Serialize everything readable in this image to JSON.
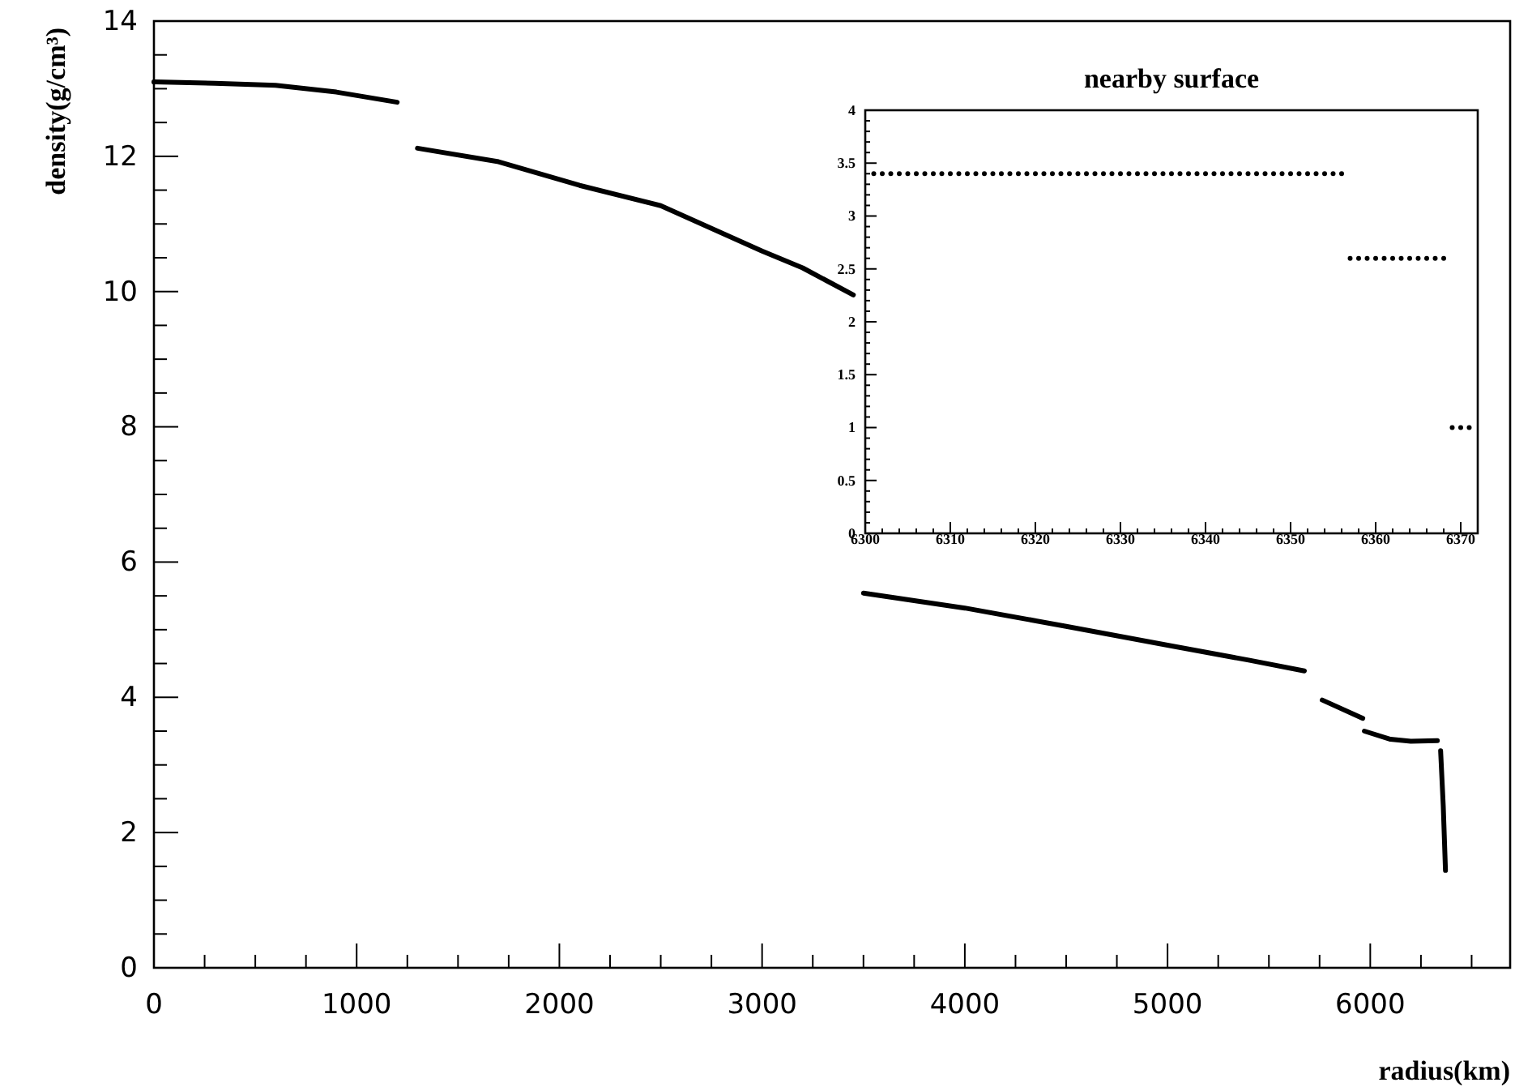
{
  "chart_data": [
    {
      "type": "line",
      "xlabel": "radius(km)",
      "ylabel": "density(g/cm³)",
      "xlim": [
        0,
        6690
      ],
      "ylim": [
        0,
        14
      ],
      "xticks": [
        0,
        {
          "value": 250,
          "label": null
        },
        {
          "value": 500,
          "label": null
        },
        {
          "value": 750,
          "label": null
        },
        1000,
        {
          "value": 1250,
          "label": null
        },
        {
          "value": 1500,
          "label": null
        },
        {
          "value": 1750,
          "label": null
        },
        2000,
        {
          "value": 2250,
          "label": null
        },
        {
          "value": 2500,
          "label": null
        },
        {
          "value": 2750,
          "label": null
        },
        3000,
        {
          "value": 3250,
          "label": null
        },
        {
          "value": 3500,
          "label": null
        },
        {
          "value": 3750,
          "label": null
        },
        4000,
        {
          "value": 4250,
          "label": null
        },
        {
          "value": 4500,
          "label": null
        },
        {
          "value": 4750,
          "label": null
        },
        5000,
        {
          "value": 5250,
          "label": null
        },
        {
          "value": 5500,
          "label": null
        },
        {
          "value": 5750,
          "label": null
        },
        6000,
        {
          "value": 6250,
          "label": null
        },
        {
          "value": 6500,
          "label": null
        }
      ],
      "yticks": [
        0,
        {
          "value": 0.5,
          "label": null
        },
        {
          "value": 1,
          "label": null
        },
        {
          "value": 1.5,
          "label": null
        },
        2,
        {
          "value": 2.5,
          "label": null
        },
        {
          "value": 3,
          "label": null
        },
        {
          "value": 3.5,
          "label": null
        },
        4,
        {
          "value": 4.5,
          "label": null
        },
        {
          "value": 5,
          "label": null
        },
        {
          "value": 5.5,
          "label": null
        },
        6,
        {
          "value": 6.5,
          "label": null
        },
        {
          "value": 7,
          "label": null
        },
        {
          "value": 7.5,
          "label": null
        },
        8,
        {
          "value": 8.5,
          "label": null
        },
        {
          "value": 9,
          "label": null
        },
        {
          "value": 9.5,
          "label": null
        },
        10,
        {
          "value": 10.5,
          "label": null
        },
        {
          "value": 11,
          "label": null
        },
        {
          "value": 11.5,
          "label": null
        },
        12,
        {
          "value": 12.5,
          "label": null
        },
        {
          "value": 13,
          "label": null
        },
        {
          "value": 13.5,
          "label": null
        },
        14
      ],
      "grid": false,
      "marker": "none",
      "line_style": "solid",
      "series": [
        {
          "color": "#000000",
          "x": [
            0,
            300,
            600,
            900,
            1200,
            1250,
            1300,
            1700,
            2100,
            2500,
            3000,
            3200,
            3450,
            3475,
            3500,
            4000,
            4500,
            5000,
            5400,
            5675,
            5720,
            5763,
            5963,
            5967,
            5971,
            6100,
            6200,
            6331,
            6340,
            6347,
            6360,
            6371
          ],
          "values": [
            13.1,
            13.08,
            13.05,
            12.95,
            12.8,
            null,
            12.12,
            11.92,
            11.57,
            11.27,
            10.6,
            10.35,
            9.95,
            null,
            5.54,
            5.32,
            5.05,
            4.77,
            4.55,
            4.39,
            null,
            3.96,
            3.69,
            null,
            3.5,
            3.38,
            3.35,
            3.36,
            null,
            3.21,
            2.4,
            1.44
          ]
        }
      ]
    },
    {
      "type": "scatter",
      "title": "nearby surface",
      "xlim": [
        6300,
        6372
      ],
      "ylim": [
        0,
        4
      ],
      "xticks": [
        6300,
        {
          "value": 6302,
          "label": null
        },
        {
          "value": 6304,
          "label": null
        },
        {
          "value": 6306,
          "label": null
        },
        {
          "value": 6308,
          "label": null
        },
        6310,
        {
          "value": 6312,
          "label": null
        },
        {
          "value": 6314,
          "label": null
        },
        {
          "value": 6316,
          "label": null
        },
        {
          "value": 6318,
          "label": null
        },
        6320,
        {
          "value": 6322,
          "label": null
        },
        {
          "value": 6324,
          "label": null
        },
        {
          "value": 6326,
          "label": null
        },
        {
          "value": 6328,
          "label": null
        },
        6330,
        {
          "value": 6332,
          "label": null
        },
        {
          "value": 6334,
          "label": null
        },
        {
          "value": 6336,
          "label": null
        },
        {
          "value": 6338,
          "label": null
        },
        6340,
        {
          "value": 6342,
          "label": null
        },
        {
          "value": 6344,
          "label": null
        },
        {
          "value": 6346,
          "label": null
        },
        {
          "value": 6348,
          "label": null
        },
        6350,
        {
          "value": 6352,
          "label": null
        },
        {
          "value": 6354,
          "label": null
        },
        {
          "value": 6356,
          "label": null
        },
        {
          "value": 6358,
          "label": null
        },
        6360,
        {
          "value": 6362,
          "label": null
        },
        {
          "value": 6364,
          "label": null
        },
        {
          "value": 6366,
          "label": null
        },
        {
          "value": 6368,
          "label": null
        },
        6370
      ],
      "yticks": [
        0,
        {
          "value": 0.1,
          "label": null
        },
        {
          "value": 0.2,
          "label": null
        },
        {
          "value": 0.3,
          "label": null
        },
        {
          "value": 0.4,
          "label": null
        },
        0.5,
        {
          "value": 0.6,
          "label": null
        },
        {
          "value": 0.7,
          "label": null
        },
        {
          "value": 0.8,
          "label": null
        },
        {
          "value": 0.9,
          "label": null
        },
        1,
        {
          "value": 1.1,
          "label": null
        },
        {
          "value": 1.2,
          "label": null
        },
        {
          "value": 1.3,
          "label": null
        },
        {
          "value": 1.4,
          "label": null
        },
        1.5,
        {
          "value": 1.6,
          "label": null
        },
        {
          "value": 1.7,
          "label": null
        },
        {
          "value": 1.8,
          "label": null
        },
        {
          "value": 1.9,
          "label": null
        },
        2,
        {
          "value": 2.1,
          "label": null
        },
        {
          "value": 2.2,
          "label": null
        },
        {
          "value": 2.3,
          "label": null
        },
        {
          "value": 2.4,
          "label": null
        },
        2.5,
        {
          "value": 2.6,
          "label": null
        },
        {
          "value": 2.7,
          "label": null
        },
        {
          "value": 2.8,
          "label": null
        },
        {
          "value": 2.9,
          "label": null
        },
        3,
        {
          "value": 3.1,
          "label": null
        },
        {
          "value": 3.2,
          "label": null
        },
        {
          "value": 3.3,
          "label": null
        },
        {
          "value": 3.4,
          "label": null
        },
        3.5,
        {
          "value": 3.6,
          "label": null
        },
        {
          "value": 3.7,
          "label": null
        },
        {
          "value": 3.8,
          "label": null
        },
        {
          "value": 3.9,
          "label": null
        },
        4
      ],
      "grid": false,
      "marker": "circle",
      "series": [
        {
          "color": "#000000",
          "x": [
            6301,
            6302,
            6303,
            6304,
            6305,
            6306,
            6307,
            6308,
            6309,
            6310,
            6311,
            6312,
            6313,
            6314,
            6315,
            6316,
            6317,
            6318,
            6319,
            6320,
            6321,
            6322,
            6323,
            6324,
            6325,
            6326,
            6327,
            6328,
            6329,
            6330,
            6331,
            6332,
            6333,
            6334,
            6335,
            6336,
            6337,
            6338,
            6339,
            6340,
            6341,
            6342,
            6343,
            6344,
            6345,
            6346,
            6347,
            6348,
            6349,
            6350,
            6351,
            6352,
            6353,
            6354,
            6355,
            6356,
            6357,
            6358,
            6359,
            6360,
            6361,
            6362,
            6363,
            6364,
            6365,
            6366,
            6367,
            6368,
            6369,
            6370,
            6371
          ],
          "values": [
            3.4,
            3.4,
            3.4,
            3.4,
            3.4,
            3.4,
            3.4,
            3.4,
            3.4,
            3.4,
            3.4,
            3.4,
            3.4,
            3.4,
            3.4,
            3.4,
            3.4,
            3.4,
            3.4,
            3.4,
            3.4,
            3.4,
            3.4,
            3.4,
            3.4,
            3.4,
            3.4,
            3.4,
            3.4,
            3.4,
            3.4,
            3.4,
            3.4,
            3.4,
            3.4,
            3.4,
            3.4,
            3.4,
            3.4,
            3.4,
            3.4,
            3.4,
            3.4,
            3.4,
            3.4,
            3.4,
            3.4,
            3.4,
            3.4,
            3.4,
            3.4,
            3.4,
            3.4,
            3.4,
            3.4,
            3.4,
            2.6,
            2.6,
            2.6,
            2.6,
            2.6,
            2.6,
            2.6,
            2.6,
            2.6,
            2.6,
            2.6,
            2.6,
            1,
            1,
            1
          ]
        }
      ]
    }
  ]
}
